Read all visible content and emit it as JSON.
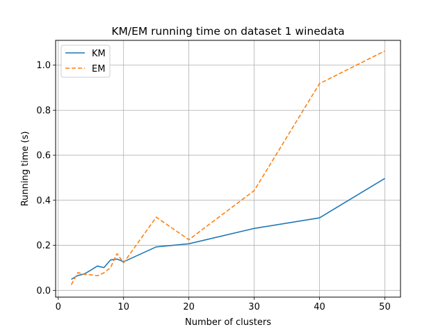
{
  "chart_data": {
    "type": "line",
    "title": "KM/EM running time on dataset 1 winedata",
    "xlabel": "Number of clusters",
    "ylabel": "Running time (s)",
    "xlim": [
      -0.4,
      52.4
    ],
    "ylim": [
      -0.03,
      1.11
    ],
    "xticks": [
      0,
      10,
      20,
      30,
      40,
      50
    ],
    "yticks": [
      0.0,
      0.2,
      0.4,
      0.6,
      0.8,
      1.0
    ],
    "xtick_labels": [
      "0",
      "10",
      "20",
      "30",
      "40",
      "50"
    ],
    "ytick_labels": [
      "0.0",
      "0.2",
      "0.4",
      "0.6",
      "0.8",
      "1.0"
    ],
    "grid": true,
    "legend_position": "top-left",
    "x": [
      2,
      3,
      4,
      5,
      6,
      7,
      8,
      9,
      10,
      15,
      20,
      30,
      40,
      50
    ],
    "series": [
      {
        "name": "KM",
        "color": "#1f77b4",
        "style": "solid",
        "values": [
          0.049,
          0.066,
          0.073,
          0.09,
          0.108,
          0.101,
          0.135,
          0.139,
          0.127,
          0.193,
          0.207,
          0.275,
          0.322,
          0.497
        ]
      },
      {
        "name": "EM",
        "color": "#ff7f0e",
        "style": "dashed",
        "values": [
          0.025,
          0.079,
          0.071,
          0.069,
          0.065,
          0.078,
          0.101,
          0.163,
          0.122,
          0.325,
          0.225,
          0.443,
          0.918,
          1.063
        ]
      }
    ]
  }
}
